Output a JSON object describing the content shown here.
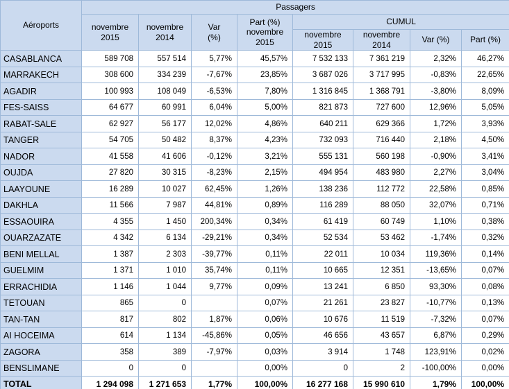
{
  "table": {
    "header": {
      "aeroports": "Aéroports",
      "passagers": "Passagers",
      "cumul": "CUMUL",
      "sub_left": [
        "novembre\n2015",
        "novembre\n2014",
        "Var\n(%)",
        "Part (%)\nnovembre\n2015"
      ],
      "sub_cumul": [
        "novembre\n2015",
        "novembre\n2014",
        "Var (%)",
        "Part (%)"
      ]
    },
    "rows": [
      {
        "airport": "CASABLANCA",
        "values": [
          "589 708",
          "557 514",
          "5,77%",
          "45,57%",
          "7 532 133",
          "7 361 219",
          "2,32%",
          "46,27%"
        ]
      },
      {
        "airport": "MARRAKECH",
        "values": [
          "308 600",
          "334 239",
          "-7,67%",
          "23,85%",
          "3 687 026",
          "3 717 995",
          "-0,83%",
          "22,65%"
        ]
      },
      {
        "airport": "AGADIR",
        "values": [
          "100 993",
          "108 049",
          "-6,53%",
          "7,80%",
          "1 316 845",
          "1 368 791",
          "-3,80%",
          "8,09%"
        ]
      },
      {
        "airport": "FES-SAISS",
        "values": [
          "64 677",
          "60 991",
          "6,04%",
          "5,00%",
          "821 873",
          "727 600",
          "12,96%",
          "5,05%"
        ]
      },
      {
        "airport": "RABAT-SALE",
        "values": [
          "62 927",
          "56 177",
          "12,02%",
          "4,86%",
          "640 211",
          "629 366",
          "1,72%",
          "3,93%"
        ]
      },
      {
        "airport": "TANGER",
        "values": [
          "54 705",
          "50 482",
          "8,37%",
          "4,23%",
          "732 093",
          "716 440",
          "2,18%",
          "4,50%"
        ]
      },
      {
        "airport": "NADOR",
        "values": [
          "41 558",
          "41 606",
          "-0,12%",
          "3,21%",
          "555 131",
          "560 198",
          "-0,90%",
          "3,41%"
        ]
      },
      {
        "airport": "OUJDA",
        "values": [
          "27 820",
          "30 315",
          "-8,23%",
          "2,15%",
          "494 954",
          "483 980",
          "2,27%",
          "3,04%"
        ]
      },
      {
        "airport": "LAAYOUNE",
        "values": [
          "16 289",
          "10 027",
          "62,45%",
          "1,26%",
          "138 236",
          "112 772",
          "22,58%",
          "0,85%"
        ]
      },
      {
        "airport": "DAKHLA",
        "values": [
          "11 566",
          "7 987",
          "44,81%",
          "0,89%",
          "116 289",
          "88 050",
          "32,07%",
          "0,71%"
        ]
      },
      {
        "airport": "ESSAOUIRA",
        "values": [
          "4 355",
          "1 450",
          "200,34%",
          "0,34%",
          "61 419",
          "60 749",
          "1,10%",
          "0,38%"
        ]
      },
      {
        "airport": "OUARZAZATE",
        "values": [
          "4 342",
          "6 134",
          "-29,21%",
          "0,34%",
          "52 534",
          "53 462",
          "-1,74%",
          "0,32%"
        ]
      },
      {
        "airport": "BENI MELLAL",
        "values": [
          "1 387",
          "2 303",
          "-39,77%",
          "0,11%",
          "22 011",
          "10 034",
          "119,36%",
          "0,14%"
        ]
      },
      {
        "airport": "GUELMIM",
        "values": [
          "1 371",
          "1 010",
          "35,74%",
          "0,11%",
          "10 665",
          "12 351",
          "-13,65%",
          "0,07%"
        ]
      },
      {
        "airport": "ERRACHIDIA",
        "values": [
          "1 146",
          "1 044",
          "9,77%",
          "0,09%",
          "13 241",
          "6 850",
          "93,30%",
          "0,08%"
        ]
      },
      {
        "airport": "TETOUAN",
        "values": [
          "865",
          "0",
          "",
          "0,07%",
          "21 261",
          "23 827",
          "-10,77%",
          "0,13%"
        ]
      },
      {
        "airport": "TAN-TAN",
        "values": [
          "817",
          "802",
          "1,87%",
          "0,06%",
          "10 676",
          "11 519",
          "-7,32%",
          "0,07%"
        ]
      },
      {
        "airport": "AI HOCEIMA",
        "values": [
          "614",
          "1 134",
          "-45,86%",
          "0,05%",
          "46 656",
          "43 657",
          "6,87%",
          "0,29%"
        ]
      },
      {
        "airport": "ZAGORA",
        "values": [
          "358",
          "389",
          "-7,97%",
          "0,03%",
          "3 914",
          "1 748",
          "123,91%",
          "0,02%"
        ]
      },
      {
        "airport": "BENSLIMANE",
        "values": [
          "0",
          "0",
          "",
          "0,00%",
          "0",
          "2",
          "-100,00%",
          "0,00%"
        ]
      }
    ],
    "total": {
      "airport": "TOTAL",
      "values": [
        "1 294 098",
        "1 271 653",
        "1,77%",
        "100,00%",
        "16 277 168",
        "15 990 610",
        "1,79%",
        "100,00%"
      ]
    },
    "colors": {
      "fill_blue": "#CBDAEF",
      "border_blue": "#9EB9D9",
      "text": "#000000"
    }
  }
}
